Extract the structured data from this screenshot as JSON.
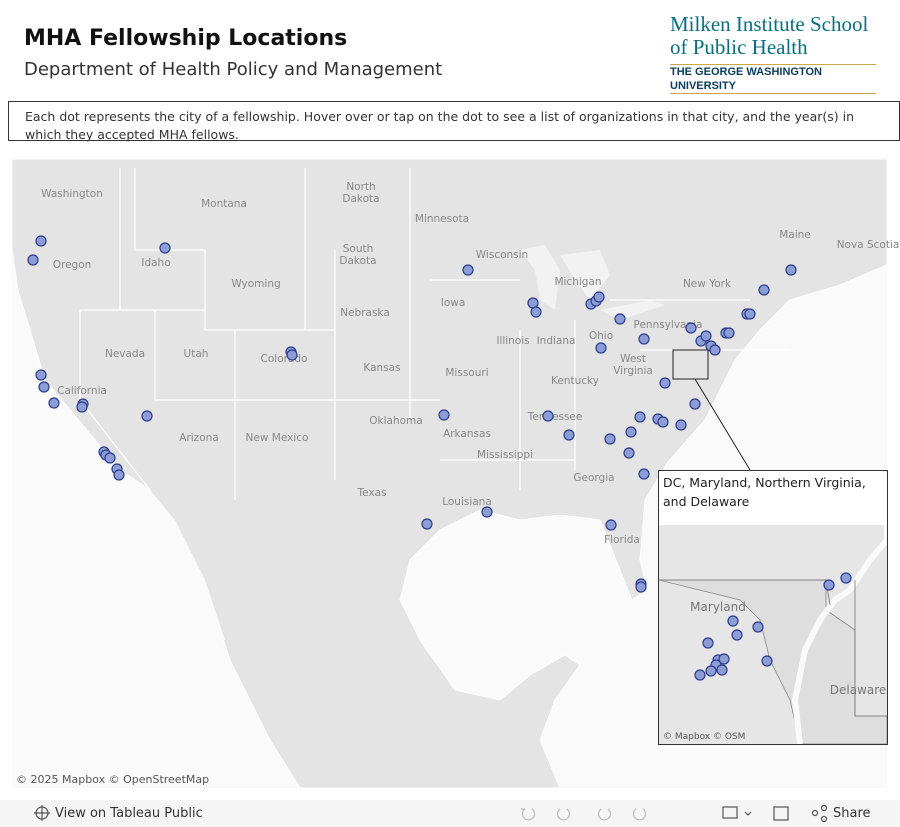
{
  "header": {
    "title": "MHA Fellowship Locations",
    "subtitle": "Department of Health Policy and Management",
    "logo": [
      "Milken Institute School",
      "of Public Health",
      "THE GEORGE WASHINGTON UNIVERSITY"
    ]
  },
  "note": "Each dot represents the city of a fellowship. Hover over or tap on the dot to see a list of organizations in that city, and the year(s) in which they accepted MHA fellows.",
  "map": {
    "labels": [
      "Washington",
      "Montana",
      "North Dakota",
      "Minnesota",
      "Oregon",
      "Idaho",
      "South Dakota",
      "Wisconsin",
      "Maine",
      "Nova Scotia",
      "Wyoming",
      "Michigan",
      "New York",
      "Iowa",
      "Nebraska",
      "Pennsylvania",
      "Nevada",
      "Utah",
      "Colorado",
      "Illinois",
      "Indiana",
      "Ohio",
      "West Virginia",
      "Kansas",
      "Missouri",
      "Kentucky",
      "California",
      "Oklahoma",
      "Tennessee",
      "Arkansas",
      "Arizona",
      "New Mexico",
      "Mississippi",
      "Georgia",
      "Texas",
      "Louisiana",
      "Florida"
    ],
    "attribution": "© 2025 Mapbox  © OpenStreetMap"
  },
  "inset": {
    "title": "DC, Maryland, Northern Virginia, and Delaware",
    "labels": [
      "Maryland",
      "Delaware"
    ],
    "attribution": "© Mapbox  © OSM"
  },
  "toolbar": {
    "view": "View on Tableau Public",
    "share": "Share"
  }
}
